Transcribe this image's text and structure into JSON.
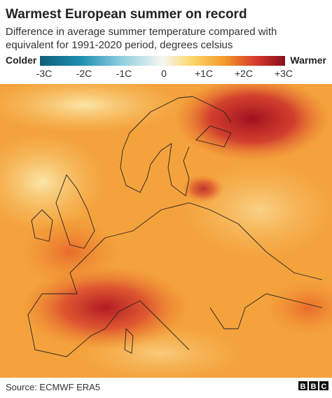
{
  "header": {
    "title": "Warmest European summer on record",
    "subtitle_lines": [
      "Difference in average summer temperature compared with",
      "equivalent for 1991-2020 period, degrees celsius"
    ]
  },
  "legend": {
    "low_label": "Colder",
    "high_label": "Warmer",
    "ticks": [
      "-3C",
      "-2C",
      "-1C",
      "0",
      "+1C",
      "+2C",
      "+3C"
    ]
  },
  "footer": {
    "source": "Source: ECMWF ERA5",
    "logo_letters": [
      "B",
      "B",
      "C"
    ]
  }
}
